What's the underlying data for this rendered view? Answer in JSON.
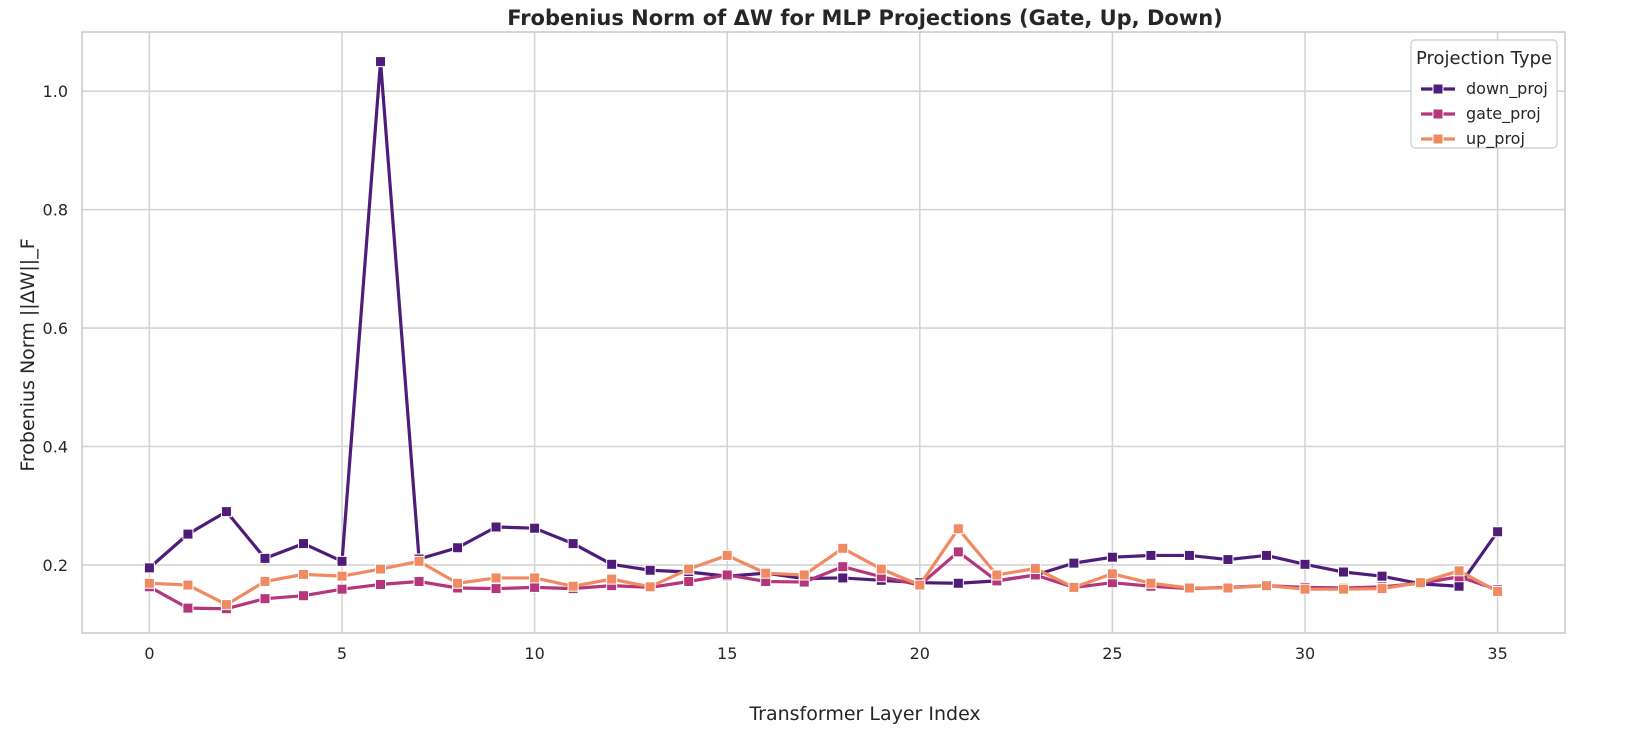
{
  "chart_data": {
    "type": "line",
    "title": "Frobenius Norm of ΔW for MLP Projections (Gate, Up, Down)",
    "xlabel": "Transformer Layer Index",
    "ylabel": "Frobenius Norm ||ΔW||_F",
    "xlim": [
      -1.75,
      36.75
    ],
    "ylim": [
      0.085,
      1.1
    ],
    "xticks": [
      0,
      5,
      10,
      15,
      20,
      25,
      30,
      35
    ],
    "yticks": [
      0.2,
      0.4,
      0.6,
      0.8,
      1.0
    ],
    "ytick_labels": [
      "0.2",
      "0.4",
      "0.6",
      "0.8",
      "1.0"
    ],
    "grid": true,
    "legend": {
      "title": "Projection Type",
      "placement": "top-right"
    },
    "x": [
      0,
      1,
      2,
      3,
      4,
      5,
      6,
      7,
      8,
      9,
      10,
      11,
      12,
      13,
      14,
      15,
      16,
      17,
      18,
      19,
      20,
      21,
      22,
      23,
      24,
      25,
      26,
      27,
      28,
      29,
      30,
      31,
      32,
      33,
      34,
      35
    ],
    "series": [
      {
        "name": "down_proj",
        "color": "#4f1c7a",
        "values": [
          0.195,
          0.252,
          0.29,
          0.211,
          0.236,
          0.206,
          1.05,
          0.21,
          0.229,
          0.264,
          0.262,
          0.236,
          0.201,
          0.191,
          0.188,
          0.181,
          0.186,
          0.177,
          0.178,
          0.174,
          0.17,
          0.169,
          0.173,
          0.183,
          0.203,
          0.213,
          0.216,
          0.216,
          0.209,
          0.216,
          0.201,
          0.188,
          0.181,
          0.168,
          0.164,
          0.256
        ]
      },
      {
        "name": "gate_proj",
        "color": "#b5367a",
        "values": [
          0.163,
          0.127,
          0.126,
          0.143,
          0.148,
          0.159,
          0.167,
          0.172,
          0.161,
          0.16,
          0.162,
          0.16,
          0.165,
          0.162,
          0.172,
          0.183,
          0.172,
          0.171,
          0.197,
          0.18,
          0.166,
          0.222,
          0.173,
          0.183,
          0.162,
          0.17,
          0.164,
          0.16,
          0.162,
          0.165,
          0.162,
          0.161,
          0.163,
          0.169,
          0.18,
          0.158
        ]
      },
      {
        "name": "up_proj",
        "color": "#f08a62",
        "values": [
          0.169,
          0.166,
          0.133,
          0.172,
          0.184,
          0.181,
          0.193,
          0.206,
          0.169,
          0.178,
          0.178,
          0.164,
          0.176,
          0.163,
          0.193,
          0.216,
          0.186,
          0.183,
          0.228,
          0.193,
          0.166,
          0.261,
          0.183,
          0.194,
          0.162,
          0.185,
          0.169,
          0.161,
          0.161,
          0.165,
          0.159,
          0.159,
          0.16,
          0.17,
          0.19,
          0.155
        ]
      }
    ]
  }
}
